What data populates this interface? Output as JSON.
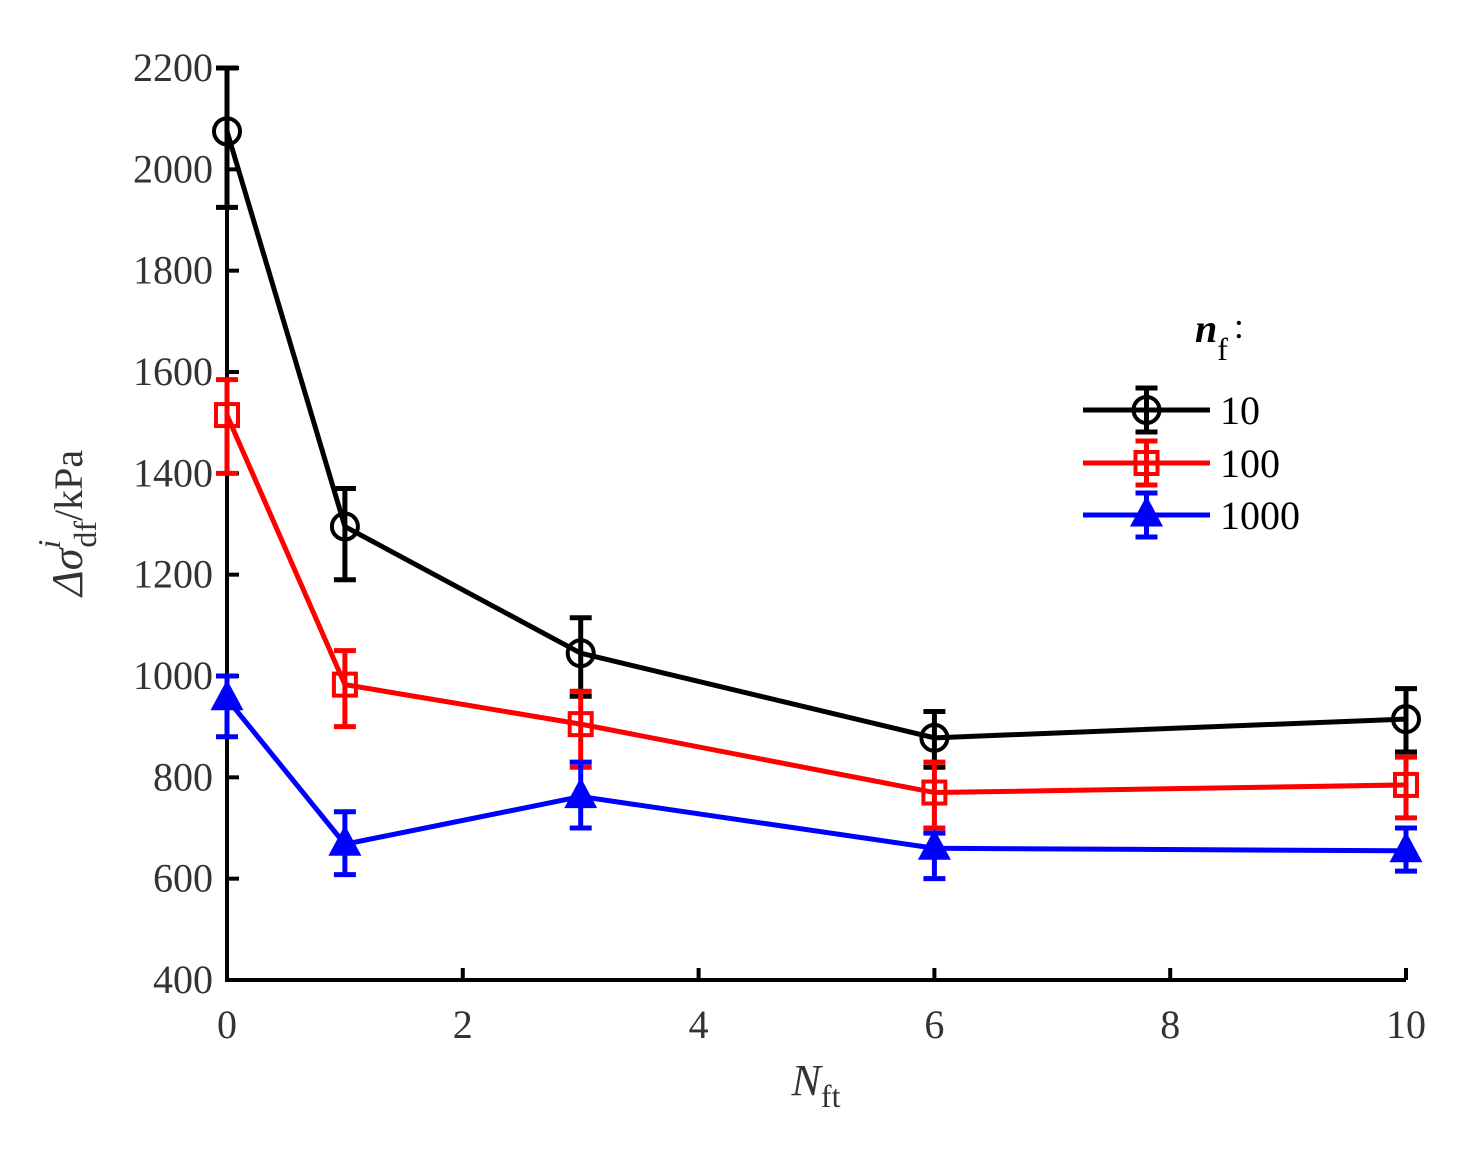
{
  "chart_data": {
    "type": "line",
    "title": "",
    "xlabel": {
      "main": "N",
      "sub": "ft"
    },
    "ylabel": {
      "main": "Δσ",
      "sup": "i",
      "sub": "df",
      "unit": "/kPa"
    },
    "xlim": [
      0,
      10
    ],
    "ylim": [
      400,
      2200
    ],
    "xticks": [
      0,
      2,
      4,
      6,
      8,
      10
    ],
    "yticks": [
      400,
      600,
      800,
      1000,
      1200,
      1400,
      1600,
      1800,
      2000,
      2200
    ],
    "grid": false,
    "legend": {
      "title_main": "n",
      "title_sub": "f",
      "title_suffix": ":",
      "placement": "right"
    },
    "x": [
      0,
      1,
      3,
      6,
      10
    ],
    "series": [
      {
        "name": "10",
        "color": "#000000",
        "marker": "circle",
        "values": [
          2075,
          1295,
          1045,
          878,
          915
        ],
        "err_low": [
          1925,
          1190,
          960,
          820,
          850
        ],
        "err_high": [
          2200,
          1370,
          1115,
          930,
          975
        ]
      },
      {
        "name": "100",
        "color": "#ff0000",
        "marker": "square",
        "values": [
          1515,
          983,
          905,
          770,
          785
        ],
        "err_low": [
          1400,
          900,
          820,
          700,
          720
        ],
        "err_high": [
          1585,
          1050,
          970,
          830,
          840
        ]
      },
      {
        "name": "1000",
        "color": "#0000ff",
        "marker": "triangle",
        "values": [
          955,
          668,
          762,
          660,
          655
        ],
        "err_low": [
          880,
          608,
          700,
          600,
          615
        ],
        "err_high": [
          1000,
          732,
          830,
          690,
          700
        ]
      }
    ]
  }
}
